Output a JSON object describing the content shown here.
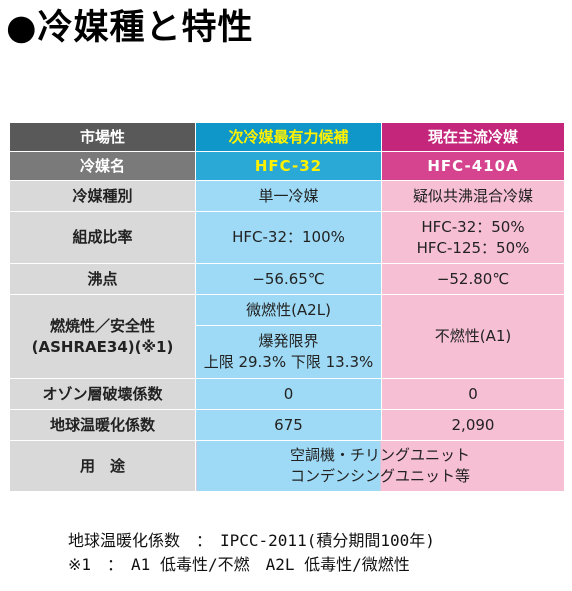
{
  "title": "●冷媒種と特性",
  "table": {
    "header": {
      "col1": "市場性",
      "col2": "次冷媒最有力候補",
      "col3": "現在主流冷媒"
    },
    "subheader": {
      "col1": "冷媒名",
      "col2": "HFC-32",
      "col3": "HFC-410A"
    },
    "rows": {
      "type": {
        "label": "冷媒種別",
        "hfc32": "単一冷媒",
        "r410a": "疑似共沸混合冷媒"
      },
      "ratio": {
        "label": "組成比率",
        "hfc32": "HFC-32：100%",
        "r410a_line1": "HFC-32：50%",
        "r410a_line2": "HFC-125：50%"
      },
      "boiling": {
        "label": "沸点",
        "hfc32": "−56.65℃",
        "r410a": "−52.80℃"
      },
      "flammability": {
        "label_line1": "燃焼性／安全性",
        "label_line2": "(ASHRAE34)(※1)",
        "hfc32_class": "微燃性(A2L)",
        "hfc32_limit_title": "爆発限界",
        "hfc32_limit_values": "上限 29.3% 下限 13.3%",
        "r410a": "不燃性(A1)"
      },
      "odp": {
        "label": "オゾン層破壊係数",
        "hfc32": "0",
        "r410a": "0"
      },
      "gwp": {
        "label": "地球温暖化係数",
        "hfc32": "675",
        "r410a": "2,090"
      },
      "use": {
        "label": "用　途",
        "line1": "空調機・チリングユニット",
        "line2": "コンデンシングユニット等"
      }
    }
  },
  "notes": {
    "line1": "地球温暖化係数　：　IPCC-2011(積分期間100年)",
    "line2": "※1　：　A1 低毒性/不燃　A2L 低毒性/微燃性"
  },
  "colors": {
    "header_dark": "#595959",
    "candidate_blue": "#0f97c9",
    "mainstream_magenta": "#c3267a",
    "cell_blue": "#9edaf5",
    "cell_pink": "#f7bfd3",
    "label_gray": "#d9d9d9",
    "candidate_text": "#fff200"
  }
}
